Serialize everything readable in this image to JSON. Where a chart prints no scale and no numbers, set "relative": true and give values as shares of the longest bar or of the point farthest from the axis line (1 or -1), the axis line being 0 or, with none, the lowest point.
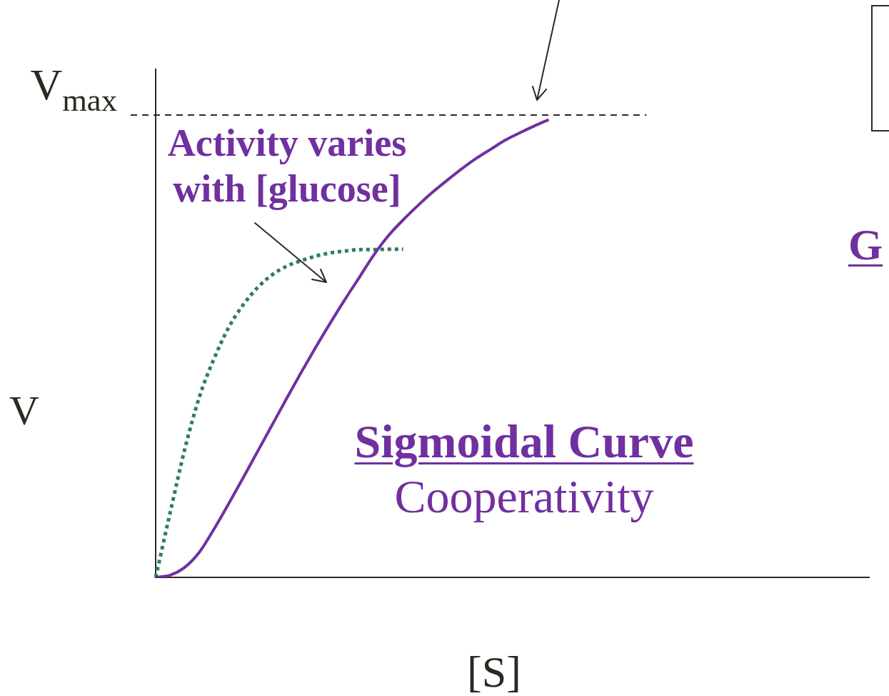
{
  "chart_data": {
    "type": "line",
    "relative": true,
    "xlabel": "[S]",
    "ylabel": "V",
    "categories": [
      null,
      null,
      null,
      null,
      null,
      null,
      null,
      null,
      null,
      null,
      null,
      null,
      null,
      null,
      null,
      null,
      null,
      null,
      null,
      null,
      null,
      null,
      null,
      null,
      null,
      null,
      null,
      null,
      null,
      null,
      null,
      null,
      null,
      null,
      null,
      null,
      null,
      null,
      null,
      null,
      null,
      null,
      null,
      null,
      null,
      null,
      null,
      null,
      null,
      null
    ],
    "series": [
      {
        "name": "Sigmoidal Curve",
        "color": "#7030a0",
        "line_style": "solid",
        "values": [
          0,
          0.005,
          0.022,
          0.055,
          0.105,
          0.16,
          0.217,
          0.275,
          0.333,
          0.391,
          0.448,
          0.503,
          0.556,
          0.607,
          0.656,
          0.705,
          0.747,
          0.781,
          0.812,
          0.841,
          0.867,
          0.892,
          0.915,
          0.935,
          0.955,
          0.971,
          0.986,
          1,
          null,
          null,
          null,
          null,
          null,
          null,
          null,
          null,
          null,
          null,
          null,
          null,
          null,
          null,
          null,
          null,
          null,
          null,
          null,
          null,
          null,
          null
        ]
      },
      {
        "color": "#2f7d5a",
        "line_style": "dotted",
        "values": [
          0,
          0.142,
          0.28,
          0.394,
          0.477,
          0.545,
          0.595,
          0.633,
          0.661,
          0.68,
          0.692,
          0.702,
          0.709,
          0.713,
          0.716,
          0.716,
          0.717,
          0.717,
          null,
          null,
          null,
          null,
          null,
          null,
          null,
          null,
          null,
          null,
          null,
          null,
          null,
          null,
          null,
          null,
          null,
          null,
          null,
          null,
          null,
          null,
          null,
          null,
          null,
          null,
          null,
          null,
          null,
          null,
          null,
          null
        ]
      }
    ],
    "marker": "none",
    "ref_lines": [
      {
        "axis": "y",
        "value": 1.01,
        "label": "V$_{max}$",
        "line_style": "dashed",
        "color": "#2b2a22"
      }
    ],
    "annotations": [
      "Activity varies with [glucose]",
      "Cooperativity",
      "G"
    ]
  }
}
